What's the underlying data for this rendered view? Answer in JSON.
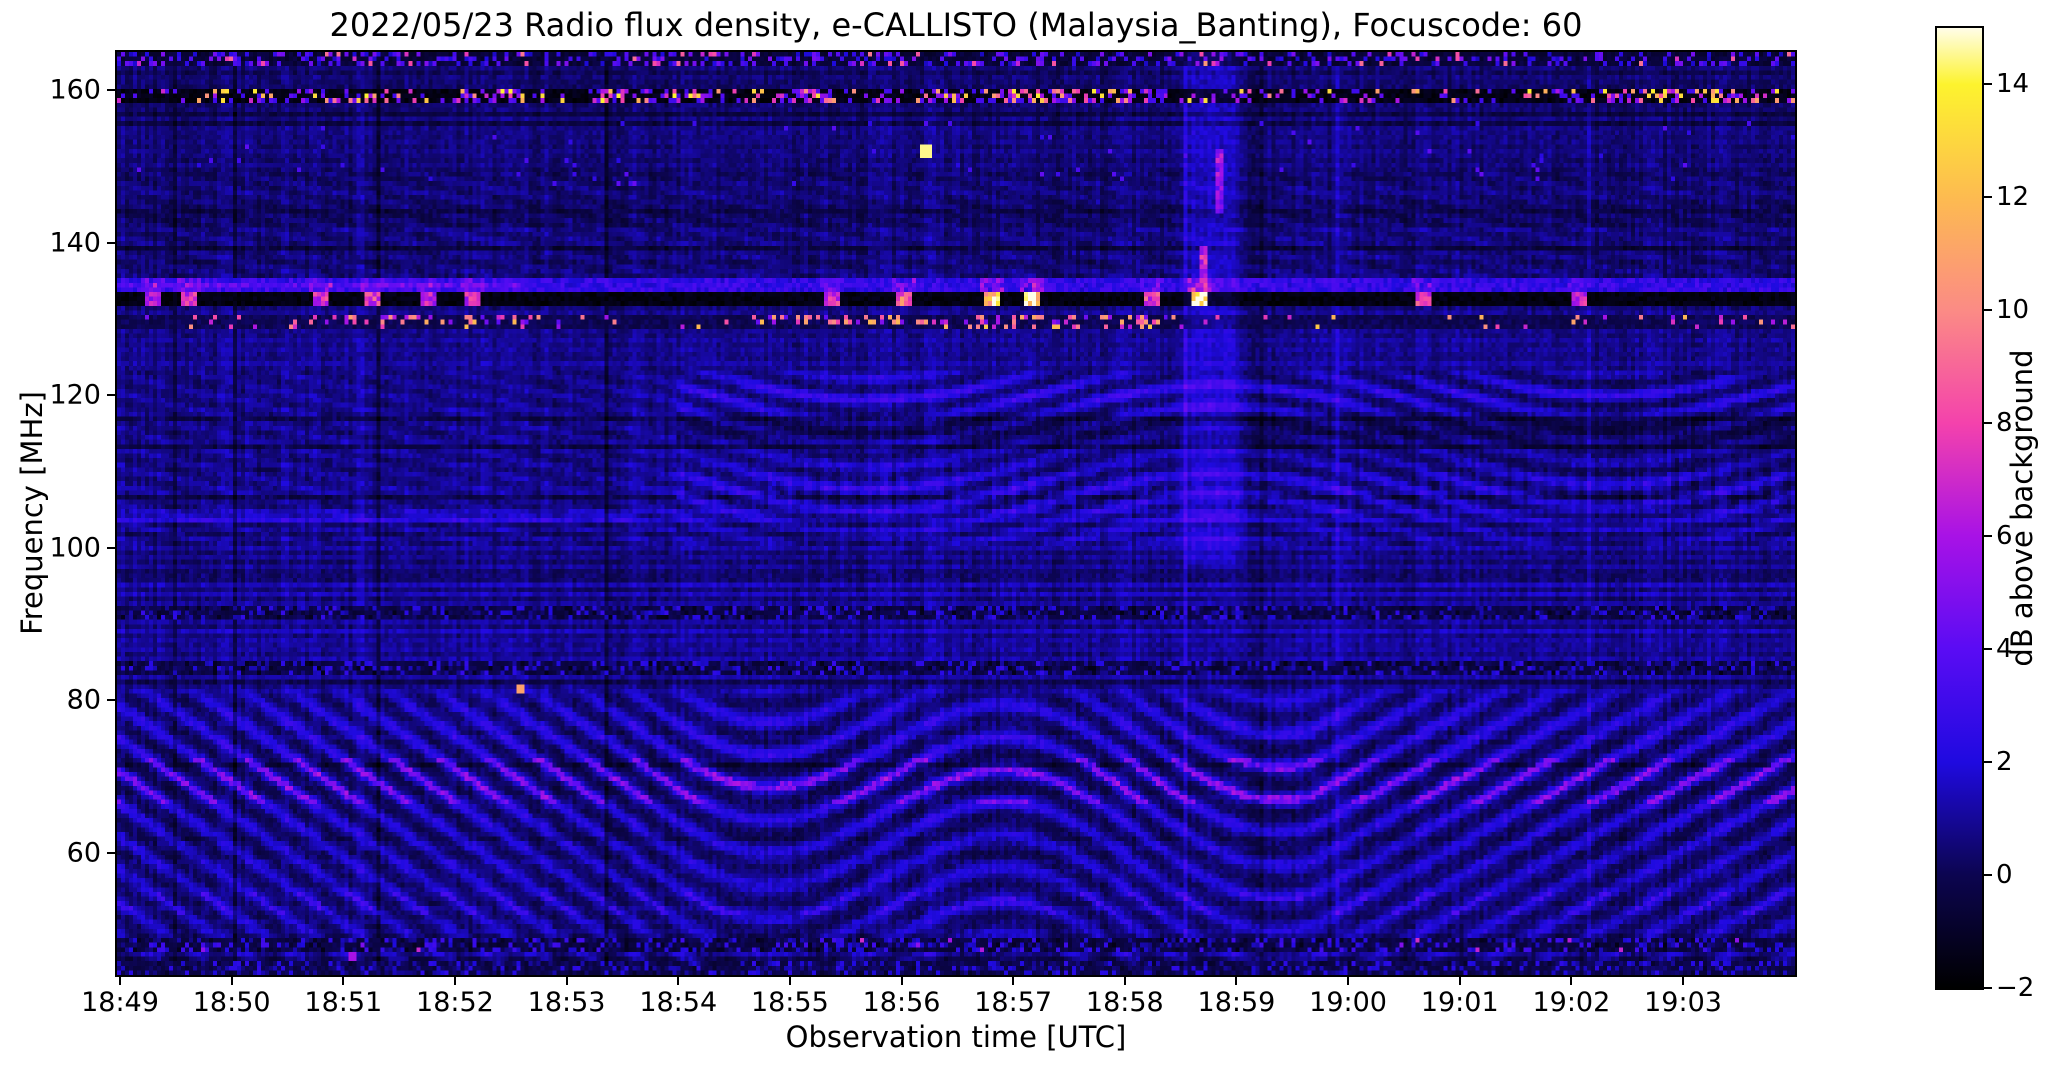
{
  "observation": {
    "date": "2022/05/23",
    "quantity": "Radio flux density",
    "network": "e-CALLISTO",
    "station": "Malaysia_Banting",
    "focuscode": "60"
  },
  "chart_data": {
    "type": "heatmap",
    "title": "2022/05/23  Radio flux density, e-CALLISTO (Malaysia_Banting), Focuscode: 60",
    "xlabel": "Observation time [UTC]",
    "ylabel": "Frequency [MHz]",
    "x_ticks": [
      "18:49",
      "18:50",
      "18:51",
      "18:52",
      "18:53",
      "18:54",
      "18:55",
      "18:56",
      "18:57",
      "18:58",
      "18:59",
      "19:00",
      "19:01",
      "19:02",
      "19:03"
    ],
    "y_ticks": [
      60,
      80,
      100,
      120,
      140,
      160
    ],
    "ylim": [
      44,
      165
    ],
    "grid": false,
    "layout": {
      "minutes_total": 15.03,
      "first_tick_offset_min": 0.027,
      "tick_interval_min": 1
    },
    "resolution": {
      "time_bins": 420,
      "freq_bins": 200
    },
    "colorbar": {
      "label": "dB above background",
      "ticks": [
        -2,
        0,
        2,
        4,
        6,
        8,
        10,
        12,
        14
      ],
      "vmin": -2,
      "vmax": 15,
      "colormap_stops": [
        [
          -2,
          "#000000"
        ],
        [
          0,
          "#0c0550"
        ],
        [
          2,
          "#1f0ae0"
        ],
        [
          4,
          "#5a0cf4"
        ],
        [
          6,
          "#a812e6"
        ],
        [
          8,
          "#f442ac"
        ],
        [
          10,
          "#fb8b85"
        ],
        [
          12,
          "#fdbb50"
        ],
        [
          14,
          "#fdf32e"
        ],
        [
          15,
          "#fffde8"
        ]
      ]
    },
    "noise_floor": {
      "base": 0.75,
      "pixel_noise": 0.9,
      "col_noise": 0.4,
      "row_noise": 0.3,
      "dark_row_prob": 0.06,
      "dark_row_offset": -0.7,
      "faint_column_count": 6,
      "faint_column_add": 0.55,
      "seed": 42
    },
    "brightness_profile": [
      [
        44,
        -0.1
      ],
      [
        82,
        0.15
      ],
      [
        84,
        0.2
      ],
      [
        104,
        0.15
      ],
      [
        106,
        -0.05
      ],
      [
        122,
        -0.05
      ],
      [
        124,
        0.15
      ],
      [
        127.5,
        0.1
      ],
      [
        135.8,
        -0.35
      ],
      [
        150,
        -0.35
      ],
      [
        153,
        -0.15
      ],
      [
        157.5,
        -0.2
      ],
      [
        162.5,
        -0.45
      ],
      [
        165,
        -0.45
      ]
    ],
    "features": [
      {
        "kind": "speckle_row",
        "f": [
          163.2,
          164.8
        ],
        "base": -0.6,
        "density": 0.3,
        "vmin": 1.5,
        "vmax": 5,
        "hot_frac": 0.04,
        "hot_vmax": 8
      },
      {
        "kind": "speckle_row",
        "f": [
          158.4,
          160.1
        ],
        "base": -1.5,
        "density": 0.24,
        "vmin": 3,
        "vmax": 14,
        "power": 2.2,
        "clusters": [
          [
            3,
            3.7
          ],
          [
            4.3,
            5.3
          ],
          [
            5.6,
            6.4
          ],
          [
            7.3,
            9.4
          ],
          [
            12.9,
            14.6
          ]
        ],
        "cluster_boost": 2.0
      },
      {
        "kind": "blob_scatter",
        "f": [
          147.5,
          156
        ],
        "density": 0.01,
        "vmin": 2.2,
        "vmax": 4.2
      },
      {
        "kind": "diag_hatch",
        "f": [
          135.5,
          149
        ],
        "fper": 2.3,
        "tper": 1.25,
        "amp": 0.5
      },
      {
        "kind": "band",
        "f": [
          133.6,
          135.3
        ],
        "val": 2.6,
        "noise": 1.0,
        "pink": {
          "t": [
            0,
            3.6
          ],
          "add": 1.6,
          "fc": 134.4,
          "hw": 0.45
        }
      },
      {
        "kind": "rfi_lane",
        "f": [
          131.8,
          133.4
        ],
        "base": -1.6,
        "blob_halfwidth": 0.07,
        "cap_f": [
          133.5,
          135.2
        ],
        "cap_gain": 0.3,
        "blobs": [
          [
            0.31,
            6
          ],
          [
            0.64,
            7
          ],
          [
            1.82,
            7
          ],
          [
            2.3,
            7.5
          ],
          [
            2.8,
            6.5
          ],
          [
            3.18,
            7
          ],
          [
            6.4,
            7
          ],
          [
            7.05,
            9
          ],
          [
            7.85,
            13
          ],
          [
            8.2,
            14.5
          ],
          [
            9.26,
            7.5
          ],
          [
            9.7,
            14
          ],
          [
            11.7,
            7.5
          ],
          [
            13.1,
            7
          ]
        ]
      },
      {
        "kind": "speckle_row",
        "f": [
          129.4,
          130.5
        ],
        "base": 0,
        "density": 0.07,
        "vmin": 4,
        "vmax": 12,
        "clusters": [
          [
            2.0,
            4.5
          ],
          [
            5.7,
            9.3
          ]
        ],
        "cluster_boost": 4.5
      },
      {
        "kind": "speckle_row",
        "f": [
          128.5,
          129.3
        ],
        "base": 0,
        "density": 0.05,
        "vmin": 5,
        "vmax": 13,
        "clusters": [
          [
            7.6,
            9.3
          ]
        ],
        "cluster_boost": 11
      },
      {
        "kind": "wave_region",
        "f": [
          100.5,
          123
        ],
        "t_split": 5.0,
        "diag": {
          "fper": 2.4,
          "tper": 1.3,
          "amp": 0.55
        },
        "wave": {
          "fper": 2.9,
          "swing": 1.55,
          "srate": 0.95,
          "drift": 0.12,
          "amp": 0.9
        },
        "bright_bands": [
          [
            120,
            2.6,
            0.9
          ],
          [
            107.5,
            3.2,
            0.7
          ]
        ],
        "dark_lane": [
          115.5,
          1.9,
          0.75
        ],
        "chain_f": [
          103,
          112
        ],
        "chain_rate": 6.0,
        "mid_boost": 0.25
      },
      {
        "kind": "stripe_region",
        "f": [
          84.5,
          105
        ],
        "amp": 0.38,
        "fper": 1.21,
        "dark_lane": {
          "fc": 101.5,
          "hw": 1.1,
          "depth": 0.5,
          "t_end": 7.0
        },
        "bright_row": {
          "fc": 103.8,
          "hw": 0.55,
          "add": 1.1,
          "t_end": 4.6
        }
      },
      {
        "kind": "speckle_row",
        "f": [
          90.7,
          92.1
        ],
        "base": -0.2,
        "density": 0.5,
        "vmin": -1.5,
        "vmax": 2.8
      },
      {
        "kind": "speckle_row",
        "f": [
          83.6,
          85.0
        ],
        "base": -0.2,
        "density": 0.5,
        "vmin": -1.5,
        "vmax": 2.8
      },
      {
        "kind": "fringe_region",
        "f": [
          44,
          82.5
        ],
        "fper": 4.3,
        "gain": 1.9,
        "floor": 0.5,
        "env": {
          "peak_f": 70,
          "peak_w": 8,
          "peak_add": 0.55,
          "base": 0.85,
          "edge_lo": 2,
          "edge_hi": 2.5
        },
        "g": {
          "lin_rate": 2.3,
          "t1": 4.6,
          "t2": 10.7,
          "osc_amp": 1.6,
          "osc_rate": 1.1,
          "mid_drift": 0.3,
          "end_rate": -1.9
        },
        "magenta": {
          "f": [
            66.5,
            72.5
          ],
          "thresh": 0.78,
          "add": 2.3
        },
        "violet": {
          "f": [
            52,
            54.8
          ],
          "thresh": 0.85,
          "add": 1.3
        }
      },
      {
        "kind": "speckle_row",
        "f": [
          47.1,
          48.9
        ],
        "base": -0.3,
        "density": 0.55,
        "vmin": -1.5,
        "vmax": 3.2,
        "hot_frac": 0.01,
        "hot_vmax": 6
      },
      {
        "kind": "speckle_row",
        "f": [
          44,
          45.6
        ],
        "base": -0.1,
        "density": 0.5,
        "vmin": -1,
        "vmax": 2.6
      },
      {
        "kind": "column_glow",
        "t": [
          9.5,
          10.1
        ],
        "f": [
          98,
          165
        ],
        "add": 1.0
      },
      {
        "kind": "vstreak",
        "t": 9.72,
        "f": [
          133.6,
          139.5
        ],
        "val": 6.5
      },
      {
        "kind": "vstreak",
        "t": 9.87,
        "f": [
          144,
          152.5
        ],
        "val": 5.5
      },
      {
        "kind": "spot",
        "t": 7.25,
        "f": 151.8,
        "val": 14.5,
        "dw": 0.06,
        "dh": 1.0
      },
      {
        "kind": "spot",
        "t": 3.62,
        "f": 81.6,
        "val": 11,
        "dw": 0.03,
        "dh": 0.8
      },
      {
        "kind": "spot",
        "t": 2.1,
        "f": 46.4,
        "val": 6,
        "dw": 0.03,
        "dh": 0.8
      }
    ]
  }
}
